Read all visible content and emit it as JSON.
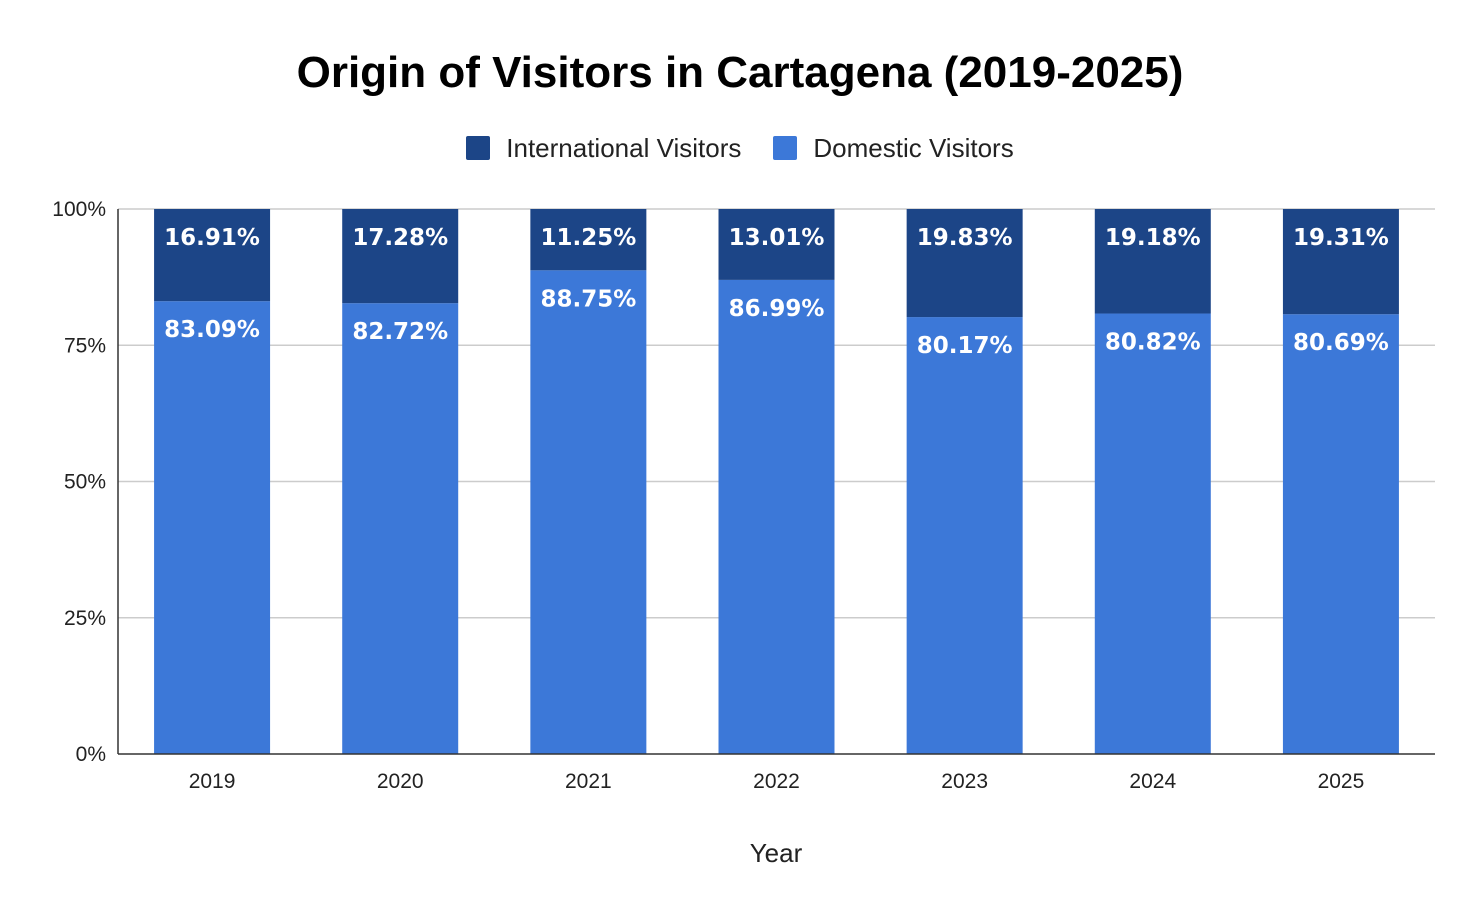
{
  "chart_data": {
    "type": "bar",
    "stacked": true,
    "title": "Origin of Visitors in Cartagena (2019-2025)",
    "xlabel": "Year",
    "ylabel": "",
    "categories": [
      "2019",
      "2020",
      "2021",
      "2022",
      "2023",
      "2024",
      "2025"
    ],
    "series": [
      {
        "name": "Domestic Visitors",
        "color": "#3c78d8",
        "values": [
          83.09,
          82.72,
          88.75,
          86.99,
          80.17,
          80.82,
          80.69
        ],
        "labels": [
          "83.09%",
          "82.72%",
          "88.75%",
          "86.99%",
          "80.17%",
          "80.82%",
          "80.69%"
        ]
      },
      {
        "name": "International Visitors",
        "color": "#1c4587",
        "values": [
          16.91,
          17.28,
          11.25,
          13.01,
          19.83,
          19.18,
          19.31
        ],
        "labels": [
          "16.91%",
          "17.28%",
          "11.25%",
          "13.01%",
          "19.83%",
          "19.18%",
          "19.31%"
        ]
      }
    ],
    "legend_order": [
      "International Visitors",
      "Domestic Visitors"
    ],
    "ylim": [
      0,
      100
    ],
    "y_ticks": [
      0,
      25,
      50,
      75,
      100
    ],
    "y_tick_labels": [
      "0%",
      "25%",
      "50%",
      "75%",
      "100%"
    ],
    "grid": true,
    "legend_position": "top-center"
  }
}
